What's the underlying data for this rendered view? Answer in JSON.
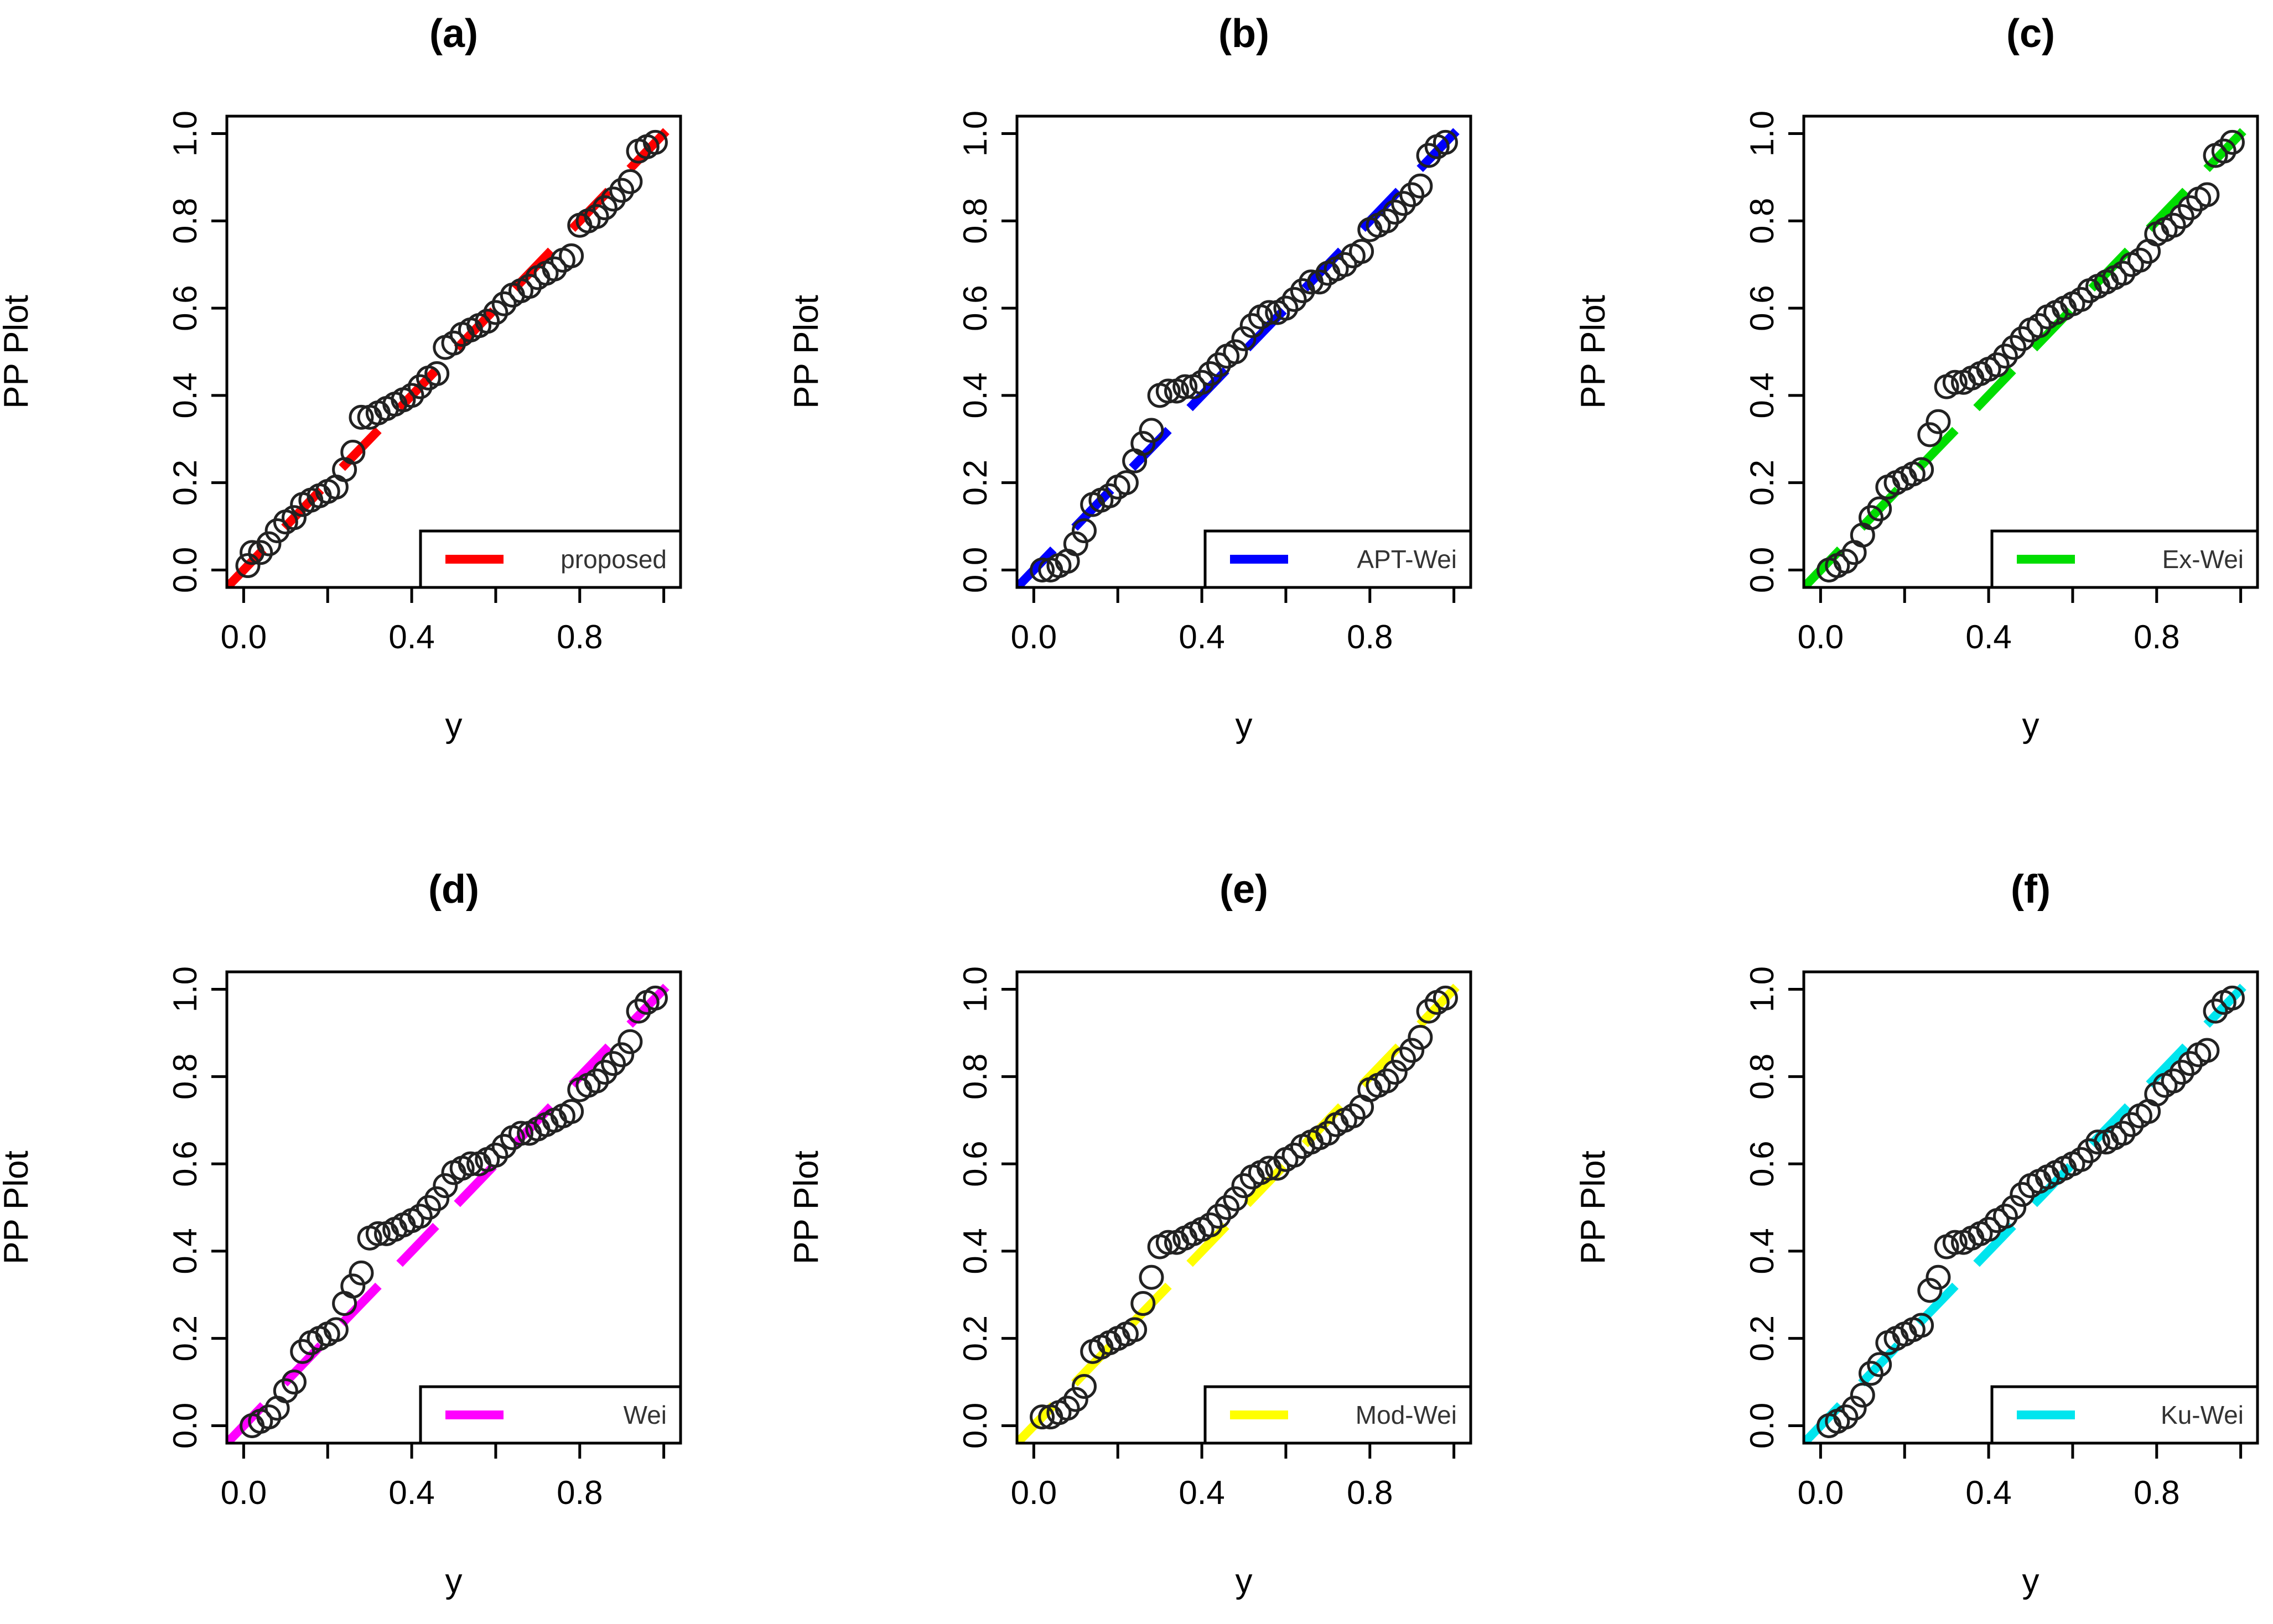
{
  "chart_data": [
    {
      "type": "scatter",
      "title": "(a)",
      "xlabel": "y",
      "ylabel": "PP Plot",
      "xlim": [
        -0.04,
        1.04
      ],
      "ylim": [
        -0.04,
        1.04
      ],
      "xticks": [
        "0.0",
        "0.4",
        "0.8"
      ],
      "yticks": [
        "0.0",
        "0.2",
        "0.4",
        "0.6",
        "0.8",
        "1.0"
      ],
      "legend": {
        "label": "proposed",
        "color": "#ff0000",
        "position": "bottom-right"
      },
      "reference_line": {
        "from": [
          -0.04,
          -0.04
        ],
        "to": [
          1.04,
          1.04
        ],
        "style": "dashed"
      },
      "points": [
        [
          0.01,
          0.01
        ],
        [
          0.02,
          0.04
        ],
        [
          0.04,
          0.04
        ],
        [
          0.06,
          0.06
        ],
        [
          0.08,
          0.09
        ],
        [
          0.1,
          0.11
        ],
        [
          0.12,
          0.12
        ],
        [
          0.14,
          0.15
        ],
        [
          0.16,
          0.16
        ],
        [
          0.18,
          0.17
        ],
        [
          0.2,
          0.18
        ],
        [
          0.22,
          0.19
        ],
        [
          0.24,
          0.23
        ],
        [
          0.26,
          0.27
        ],
        [
          0.28,
          0.35
        ],
        [
          0.3,
          0.35
        ],
        [
          0.32,
          0.36
        ],
        [
          0.34,
          0.37
        ],
        [
          0.36,
          0.38
        ],
        [
          0.38,
          0.39
        ],
        [
          0.4,
          0.4
        ],
        [
          0.42,
          0.42
        ],
        [
          0.44,
          0.44
        ],
        [
          0.46,
          0.45
        ],
        [
          0.48,
          0.51
        ],
        [
          0.5,
          0.52
        ],
        [
          0.52,
          0.54
        ],
        [
          0.54,
          0.55
        ],
        [
          0.56,
          0.56
        ],
        [
          0.58,
          0.57
        ],
        [
          0.6,
          0.59
        ],
        [
          0.62,
          0.61
        ],
        [
          0.64,
          0.63
        ],
        [
          0.66,
          0.64
        ],
        [
          0.68,
          0.65
        ],
        [
          0.7,
          0.67
        ],
        [
          0.72,
          0.68
        ],
        [
          0.74,
          0.69
        ],
        [
          0.76,
          0.71
        ],
        [
          0.78,
          0.72
        ],
        [
          0.8,
          0.79
        ],
        [
          0.82,
          0.8
        ],
        [
          0.84,
          0.81
        ],
        [
          0.86,
          0.83
        ],
        [
          0.88,
          0.85
        ],
        [
          0.9,
          0.87
        ],
        [
          0.92,
          0.89
        ],
        [
          0.94,
          0.96
        ],
        [
          0.96,
          0.97
        ],
        [
          0.98,
          0.98
        ]
      ]
    },
    {
      "type": "scatter",
      "title": "(b)",
      "xlabel": "y",
      "ylabel": "PP Plot",
      "xlim": [
        -0.04,
        1.04
      ],
      "ylim": [
        -0.04,
        1.04
      ],
      "xticks": [
        "0.0",
        "0.4",
        "0.8"
      ],
      "yticks": [
        "0.0",
        "0.2",
        "0.4",
        "0.6",
        "0.8",
        "1.0"
      ],
      "legend": {
        "label": "APT-Wei",
        "color": "#0000ff",
        "position": "bottom-right"
      },
      "reference_line": {
        "from": [
          -0.04,
          -0.04
        ],
        "to": [
          1.04,
          1.04
        ],
        "style": "dashed"
      },
      "points": [
        [
          0.02,
          0.0
        ],
        [
          0.04,
          0.0
        ],
        [
          0.06,
          0.01
        ],
        [
          0.08,
          0.02
        ],
        [
          0.1,
          0.06
        ],
        [
          0.12,
          0.09
        ],
        [
          0.14,
          0.15
        ],
        [
          0.16,
          0.16
        ],
        [
          0.18,
          0.17
        ],
        [
          0.2,
          0.19
        ],
        [
          0.22,
          0.2
        ],
        [
          0.24,
          0.25
        ],
        [
          0.26,
          0.29
        ],
        [
          0.28,
          0.32
        ],
        [
          0.3,
          0.4
        ],
        [
          0.32,
          0.41
        ],
        [
          0.34,
          0.41
        ],
        [
          0.36,
          0.42
        ],
        [
          0.38,
          0.42
        ],
        [
          0.4,
          0.43
        ],
        [
          0.42,
          0.45
        ],
        [
          0.44,
          0.47
        ],
        [
          0.46,
          0.49
        ],
        [
          0.48,
          0.5
        ],
        [
          0.5,
          0.53
        ],
        [
          0.52,
          0.56
        ],
        [
          0.54,
          0.58
        ],
        [
          0.56,
          0.59
        ],
        [
          0.58,
          0.59
        ],
        [
          0.6,
          0.6
        ],
        [
          0.62,
          0.62
        ],
        [
          0.64,
          0.64
        ],
        [
          0.66,
          0.66
        ],
        [
          0.68,
          0.66
        ],
        [
          0.7,
          0.68
        ],
        [
          0.72,
          0.69
        ],
        [
          0.74,
          0.7
        ],
        [
          0.76,
          0.72
        ],
        [
          0.78,
          0.73
        ],
        [
          0.8,
          0.78
        ],
        [
          0.82,
          0.79
        ],
        [
          0.84,
          0.8
        ],
        [
          0.86,
          0.82
        ],
        [
          0.88,
          0.84
        ],
        [
          0.9,
          0.86
        ],
        [
          0.92,
          0.88
        ],
        [
          0.94,
          0.95
        ],
        [
          0.96,
          0.97
        ],
        [
          0.98,
          0.98
        ]
      ]
    },
    {
      "type": "scatter",
      "title": "(c)",
      "xlabel": "y",
      "ylabel": "PP Plot",
      "xlim": [
        -0.04,
        1.04
      ],
      "ylim": [
        -0.04,
        1.04
      ],
      "xticks": [
        "0.0",
        "0.4",
        "0.8"
      ],
      "yticks": [
        "0.0",
        "0.2",
        "0.4",
        "0.6",
        "0.8",
        "1.0"
      ],
      "legend": {
        "label": "Ex-Wei",
        "color": "#00dd00",
        "position": "bottom-right"
      },
      "reference_line": {
        "from": [
          -0.04,
          -0.04
        ],
        "to": [
          1.04,
          1.04
        ],
        "style": "dashed"
      },
      "points": [
        [
          0.02,
          0.0
        ],
        [
          0.04,
          0.01
        ],
        [
          0.06,
          0.02
        ],
        [
          0.08,
          0.04
        ],
        [
          0.1,
          0.08
        ],
        [
          0.12,
          0.12
        ],
        [
          0.14,
          0.14
        ],
        [
          0.16,
          0.19
        ],
        [
          0.18,
          0.2
        ],
        [
          0.2,
          0.21
        ],
        [
          0.22,
          0.22
        ],
        [
          0.24,
          0.23
        ],
        [
          0.26,
          0.31
        ],
        [
          0.28,
          0.34
        ],
        [
          0.3,
          0.42
        ],
        [
          0.32,
          0.43
        ],
        [
          0.34,
          0.43
        ],
        [
          0.36,
          0.44
        ],
        [
          0.38,
          0.45
        ],
        [
          0.4,
          0.46
        ],
        [
          0.42,
          0.47
        ],
        [
          0.44,
          0.49
        ],
        [
          0.46,
          0.51
        ],
        [
          0.48,
          0.53
        ],
        [
          0.5,
          0.55
        ],
        [
          0.52,
          0.56
        ],
        [
          0.54,
          0.58
        ],
        [
          0.56,
          0.59
        ],
        [
          0.58,
          0.6
        ],
        [
          0.6,
          0.61
        ],
        [
          0.62,
          0.62
        ],
        [
          0.64,
          0.64
        ],
        [
          0.66,
          0.65
        ],
        [
          0.68,
          0.66
        ],
        [
          0.7,
          0.67
        ],
        [
          0.72,
          0.68
        ],
        [
          0.74,
          0.7
        ],
        [
          0.76,
          0.71
        ],
        [
          0.78,
          0.73
        ],
        [
          0.8,
          0.77
        ],
        [
          0.82,
          0.78
        ],
        [
          0.84,
          0.79
        ],
        [
          0.86,
          0.81
        ],
        [
          0.88,
          0.83
        ],
        [
          0.9,
          0.85
        ],
        [
          0.92,
          0.86
        ],
        [
          0.94,
          0.95
        ],
        [
          0.96,
          0.96
        ],
        [
          0.98,
          0.98
        ]
      ]
    },
    {
      "type": "scatter",
      "title": "(d)",
      "xlabel": "y",
      "ylabel": "PP Plot",
      "xlim": [
        -0.04,
        1.04
      ],
      "ylim": [
        -0.04,
        1.04
      ],
      "xticks": [
        "0.0",
        "0.4",
        "0.8"
      ],
      "yticks": [
        "0.0",
        "0.2",
        "0.4",
        "0.6",
        "0.8",
        "1.0"
      ],
      "legend": {
        "label": "Wei",
        "color": "#ff00ff",
        "position": "bottom-right"
      },
      "reference_line": {
        "from": [
          -0.04,
          -0.04
        ],
        "to": [
          1.04,
          1.04
        ],
        "style": "dashed"
      },
      "points": [
        [
          0.02,
          0.0
        ],
        [
          0.04,
          0.01
        ],
        [
          0.06,
          0.02
        ],
        [
          0.08,
          0.04
        ],
        [
          0.1,
          0.08
        ],
        [
          0.12,
          0.1
        ],
        [
          0.14,
          0.17
        ],
        [
          0.16,
          0.19
        ],
        [
          0.18,
          0.2
        ],
        [
          0.2,
          0.21
        ],
        [
          0.22,
          0.22
        ],
        [
          0.24,
          0.28
        ],
        [
          0.26,
          0.32
        ],
        [
          0.28,
          0.35
        ],
        [
          0.3,
          0.43
        ],
        [
          0.32,
          0.44
        ],
        [
          0.34,
          0.44
        ],
        [
          0.36,
          0.45
        ],
        [
          0.38,
          0.46
        ],
        [
          0.4,
          0.47
        ],
        [
          0.42,
          0.48
        ],
        [
          0.44,
          0.5
        ],
        [
          0.46,
          0.52
        ],
        [
          0.48,
          0.55
        ],
        [
          0.5,
          0.58
        ],
        [
          0.52,
          0.59
        ],
        [
          0.54,
          0.6
        ],
        [
          0.56,
          0.6
        ],
        [
          0.58,
          0.61
        ],
        [
          0.6,
          0.62
        ],
        [
          0.62,
          0.64
        ],
        [
          0.64,
          0.66
        ],
        [
          0.66,
          0.67
        ],
        [
          0.68,
          0.67
        ],
        [
          0.7,
          0.68
        ],
        [
          0.72,
          0.69
        ],
        [
          0.74,
          0.7
        ],
        [
          0.76,
          0.71
        ],
        [
          0.78,
          0.72
        ],
        [
          0.8,
          0.77
        ],
        [
          0.82,
          0.78
        ],
        [
          0.84,
          0.79
        ],
        [
          0.86,
          0.81
        ],
        [
          0.88,
          0.83
        ],
        [
          0.9,
          0.85
        ],
        [
          0.92,
          0.88
        ],
        [
          0.94,
          0.95
        ],
        [
          0.96,
          0.97
        ],
        [
          0.98,
          0.98
        ]
      ]
    },
    {
      "type": "scatter",
      "title": "(e)",
      "xlabel": "y",
      "ylabel": "PP Plot",
      "xlim": [
        -0.04,
        1.04
      ],
      "ylim": [
        -0.04,
        1.04
      ],
      "xticks": [
        "0.0",
        "0.4",
        "0.8"
      ],
      "yticks": [
        "0.0",
        "0.2",
        "0.4",
        "0.6",
        "0.8",
        "1.0"
      ],
      "legend": {
        "label": "Mod-Wei",
        "color": "#ffff00",
        "position": "bottom-right"
      },
      "reference_line": {
        "from": [
          -0.04,
          -0.04
        ],
        "to": [
          1.04,
          1.04
        ],
        "style": "dashed"
      },
      "points": [
        [
          0.02,
          0.02
        ],
        [
          0.04,
          0.02
        ],
        [
          0.06,
          0.03
        ],
        [
          0.08,
          0.04
        ],
        [
          0.1,
          0.06
        ],
        [
          0.12,
          0.09
        ],
        [
          0.14,
          0.17
        ],
        [
          0.16,
          0.18
        ],
        [
          0.18,
          0.19
        ],
        [
          0.2,
          0.2
        ],
        [
          0.22,
          0.21
        ],
        [
          0.24,
          0.22
        ],
        [
          0.26,
          0.28
        ],
        [
          0.28,
          0.34
        ],
        [
          0.3,
          0.41
        ],
        [
          0.32,
          0.42
        ],
        [
          0.34,
          0.42
        ],
        [
          0.36,
          0.43
        ],
        [
          0.38,
          0.44
        ],
        [
          0.4,
          0.45
        ],
        [
          0.42,
          0.46
        ],
        [
          0.44,
          0.48
        ],
        [
          0.46,
          0.5
        ],
        [
          0.48,
          0.52
        ],
        [
          0.5,
          0.55
        ],
        [
          0.52,
          0.57
        ],
        [
          0.54,
          0.58
        ],
        [
          0.56,
          0.59
        ],
        [
          0.58,
          0.59
        ],
        [
          0.6,
          0.61
        ],
        [
          0.62,
          0.62
        ],
        [
          0.64,
          0.64
        ],
        [
          0.66,
          0.65
        ],
        [
          0.68,
          0.66
        ],
        [
          0.7,
          0.67
        ],
        [
          0.72,
          0.69
        ],
        [
          0.74,
          0.7
        ],
        [
          0.76,
          0.71
        ],
        [
          0.78,
          0.73
        ],
        [
          0.8,
          0.77
        ],
        [
          0.82,
          0.78
        ],
        [
          0.84,
          0.79
        ],
        [
          0.86,
          0.81
        ],
        [
          0.88,
          0.84
        ],
        [
          0.9,
          0.86
        ],
        [
          0.92,
          0.89
        ],
        [
          0.94,
          0.95
        ],
        [
          0.96,
          0.97
        ],
        [
          0.98,
          0.98
        ]
      ]
    },
    {
      "type": "scatter",
      "title": "(f)",
      "xlabel": "y",
      "ylabel": "PP Plot",
      "xlim": [
        -0.04,
        1.04
      ],
      "ylim": [
        -0.04,
        1.04
      ],
      "xticks": [
        "0.0",
        "0.4",
        "0.8"
      ],
      "yticks": [
        "0.0",
        "0.2",
        "0.4",
        "0.6",
        "0.8",
        "1.0"
      ],
      "legend": {
        "label": "Ku-Wei",
        "color": "#00e5ee",
        "position": "bottom-right"
      },
      "reference_line": {
        "from": [
          -0.04,
          -0.04
        ],
        "to": [
          1.04,
          1.04
        ],
        "style": "dashed"
      },
      "points": [
        [
          0.02,
          0.0
        ],
        [
          0.04,
          0.01
        ],
        [
          0.06,
          0.02
        ],
        [
          0.08,
          0.04
        ],
        [
          0.1,
          0.07
        ],
        [
          0.12,
          0.12
        ],
        [
          0.14,
          0.14
        ],
        [
          0.16,
          0.19
        ],
        [
          0.18,
          0.2
        ],
        [
          0.2,
          0.21
        ],
        [
          0.22,
          0.22
        ],
        [
          0.24,
          0.23
        ],
        [
          0.26,
          0.31
        ],
        [
          0.28,
          0.34
        ],
        [
          0.3,
          0.41
        ],
        [
          0.32,
          0.42
        ],
        [
          0.34,
          0.42
        ],
        [
          0.36,
          0.43
        ],
        [
          0.38,
          0.44
        ],
        [
          0.4,
          0.45
        ],
        [
          0.42,
          0.47
        ],
        [
          0.44,
          0.48
        ],
        [
          0.46,
          0.5
        ],
        [
          0.48,
          0.53
        ],
        [
          0.5,
          0.55
        ],
        [
          0.52,
          0.56
        ],
        [
          0.54,
          0.57
        ],
        [
          0.56,
          0.58
        ],
        [
          0.58,
          0.59
        ],
        [
          0.6,
          0.6
        ],
        [
          0.62,
          0.61
        ],
        [
          0.64,
          0.63
        ],
        [
          0.66,
          0.65
        ],
        [
          0.68,
          0.65
        ],
        [
          0.7,
          0.66
        ],
        [
          0.72,
          0.67
        ],
        [
          0.74,
          0.69
        ],
        [
          0.76,
          0.71
        ],
        [
          0.78,
          0.72
        ],
        [
          0.8,
          0.76
        ],
        [
          0.82,
          0.78
        ],
        [
          0.84,
          0.79
        ],
        [
          0.86,
          0.81
        ],
        [
          0.88,
          0.83
        ],
        [
          0.9,
          0.85
        ],
        [
          0.92,
          0.86
        ],
        [
          0.94,
          0.95
        ],
        [
          0.96,
          0.97
        ],
        [
          0.98,
          0.98
        ]
      ]
    }
  ]
}
